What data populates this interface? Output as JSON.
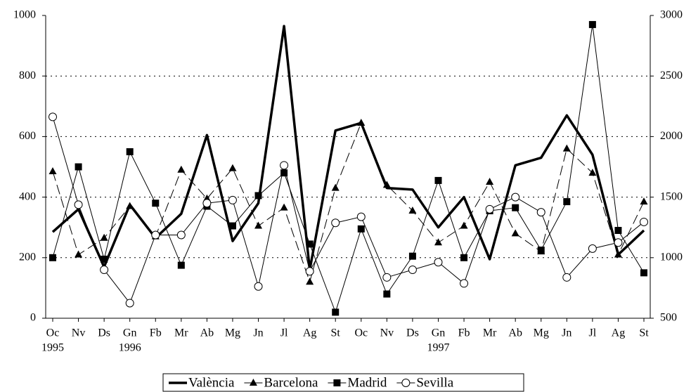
{
  "chart_data": {
    "type": "line",
    "categories": [
      "Oc",
      "Nv",
      "Ds",
      "Gn",
      "Fb",
      "Mr",
      "Ab",
      "Mg",
      "Jn",
      "Jl",
      "Ag",
      "St",
      "Oc",
      "Nv",
      "Ds",
      "Gn",
      "Fb",
      "Mr",
      "Ab",
      "Mg",
      "Jn",
      "Jl",
      "Ag",
      "St"
    ],
    "years": [
      "1995",
      null,
      null,
      "1996",
      null,
      null,
      null,
      null,
      null,
      null,
      null,
      null,
      null,
      null,
      null,
      "1997",
      null,
      null,
      null,
      null,
      null,
      null,
      null,
      null
    ],
    "ylim": [
      0,
      1000
    ],
    "yticks": [
      0,
      200,
      400,
      600,
      800,
      1000
    ],
    "y2lim": [
      500,
      3000
    ],
    "y2ticks": [
      500,
      1000,
      1500,
      2000,
      2500,
      3000
    ],
    "grid": true,
    "legend": "bottom",
    "series": [
      {
        "name": "València",
        "color": "#000000",
        "width": 3.5,
        "dash": "none",
        "marker": "none",
        "values": [
          285,
          360,
          170,
          375,
          265,
          345,
          605,
          255,
          380,
          965,
          160,
          620,
          645,
          430,
          425,
          300,
          400,
          195,
          505,
          530,
          670,
          540,
          210,
          290
        ]
      },
      {
        "name": "Barcelona",
        "color": "#000000",
        "width": 1,
        "dash": "14 6",
        "marker": "triangle",
        "values": [
          485,
          210,
          265,
          370,
          270,
          490,
          395,
          495,
          305,
          365,
          120,
          430,
          645,
          440,
          355,
          250,
          305,
          450,
          280,
          220,
          560,
          480,
          210,
          385
        ]
      },
      {
        "name": "Madrid",
        "color": "#000000",
        "width": 1,
        "dash": "none",
        "marker": "square",
        "values": [
          200,
          500,
          195,
          550,
          380,
          175,
          370,
          305,
          405,
          480,
          245,
          20,
          295,
          80,
          205,
          455,
          200,
          355,
          365,
          225,
          385,
          970,
          290,
          150
        ]
      },
      {
        "name": "Sevilla",
        "color": "#000000",
        "width": 1,
        "dash": "none",
        "marker": "circle",
        "values": [
          665,
          375,
          160,
          50,
          275,
          275,
          380,
          390,
          105,
          505,
          155,
          315,
          335,
          135,
          160,
          185,
          115,
          360,
          400,
          350,
          135,
          230,
          250,
          318
        ]
      }
    ]
  }
}
